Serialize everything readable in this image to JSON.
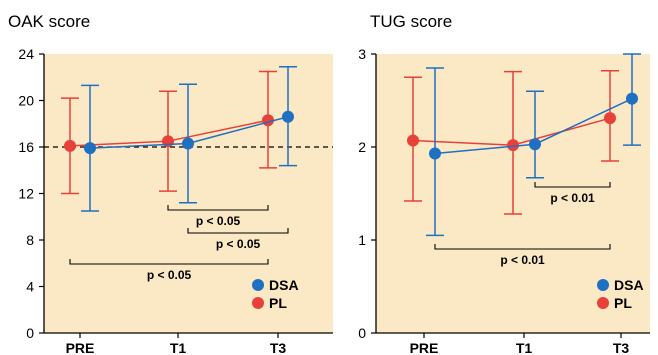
{
  "chart_data": [
    {
      "type": "line",
      "title": "OAK score",
      "categories": [
        "PRE",
        "T1",
        "T3"
      ],
      "ylim": [
        0,
        24
      ],
      "yticks": [
        0,
        4,
        8,
        12,
        16,
        20,
        24
      ],
      "reference_line": 16,
      "grid": false,
      "legend_position": "bottom-right",
      "series": [
        {
          "name": "DSA",
          "color": "#1f6fc2",
          "values": [
            15.9,
            16.3,
            18.6
          ],
          "err_low": [
            10.5,
            11.2,
            14.4
          ],
          "err_high": [
            21.3,
            21.4,
            22.9
          ]
        },
        {
          "name": "PL",
          "color": "#e8413a",
          "values": [
            16.1,
            16.5,
            18.3
          ],
          "err_low": [
            12.0,
            12.2,
            14.2
          ],
          "err_high": [
            20.2,
            20.8,
            22.5
          ]
        }
      ],
      "annotations": [
        {
          "text": "p < 0.05",
          "from": "T1",
          "to": "T3",
          "series_from": "PL",
          "series_to": "PL",
          "y": 10.3
        },
        {
          "text": "p < 0.05",
          "from": "T1",
          "to": "T3",
          "series_from": "DSA",
          "series_to": "DSA",
          "y": 8.6
        },
        {
          "text": "p < 0.05",
          "from": "PRE",
          "to": "T3",
          "series_from": "PL",
          "series_to": "PL",
          "y": 6.3
        }
      ]
    },
    {
      "type": "line",
      "title": "TUG score",
      "categories": [
        "PRE",
        "T1",
        "T3"
      ],
      "ylim": [
        0,
        3
      ],
      "yticks": [
        0,
        1,
        2,
        3
      ],
      "grid": false,
      "legend_position": "bottom-right",
      "series": [
        {
          "name": "DSA",
          "color": "#1f6fc2",
          "values": [
            1.93,
            2.03,
            2.52
          ],
          "err_low": [
            1.05,
            1.67,
            2.02
          ],
          "err_high": [
            2.85,
            2.6,
            3.0
          ]
        },
        {
          "name": "PL",
          "color": "#e8413a",
          "values": [
            2.07,
            2.02,
            2.31
          ],
          "err_low": [
            1.42,
            1.28,
            1.85
          ],
          "err_high": [
            2.75,
            2.81,
            2.82
          ]
        }
      ],
      "annotations": [
        {
          "text": "p < 0.01",
          "from": "T1",
          "to": "T3",
          "series_from": "DSA",
          "series_to": "PL",
          "y": 1.6
        },
        {
          "text": "p < 0.01",
          "from": "PRE",
          "to": "T3",
          "series_from": "DSA",
          "series_to": "PL",
          "y": 0.92
        }
      ]
    }
  ]
}
